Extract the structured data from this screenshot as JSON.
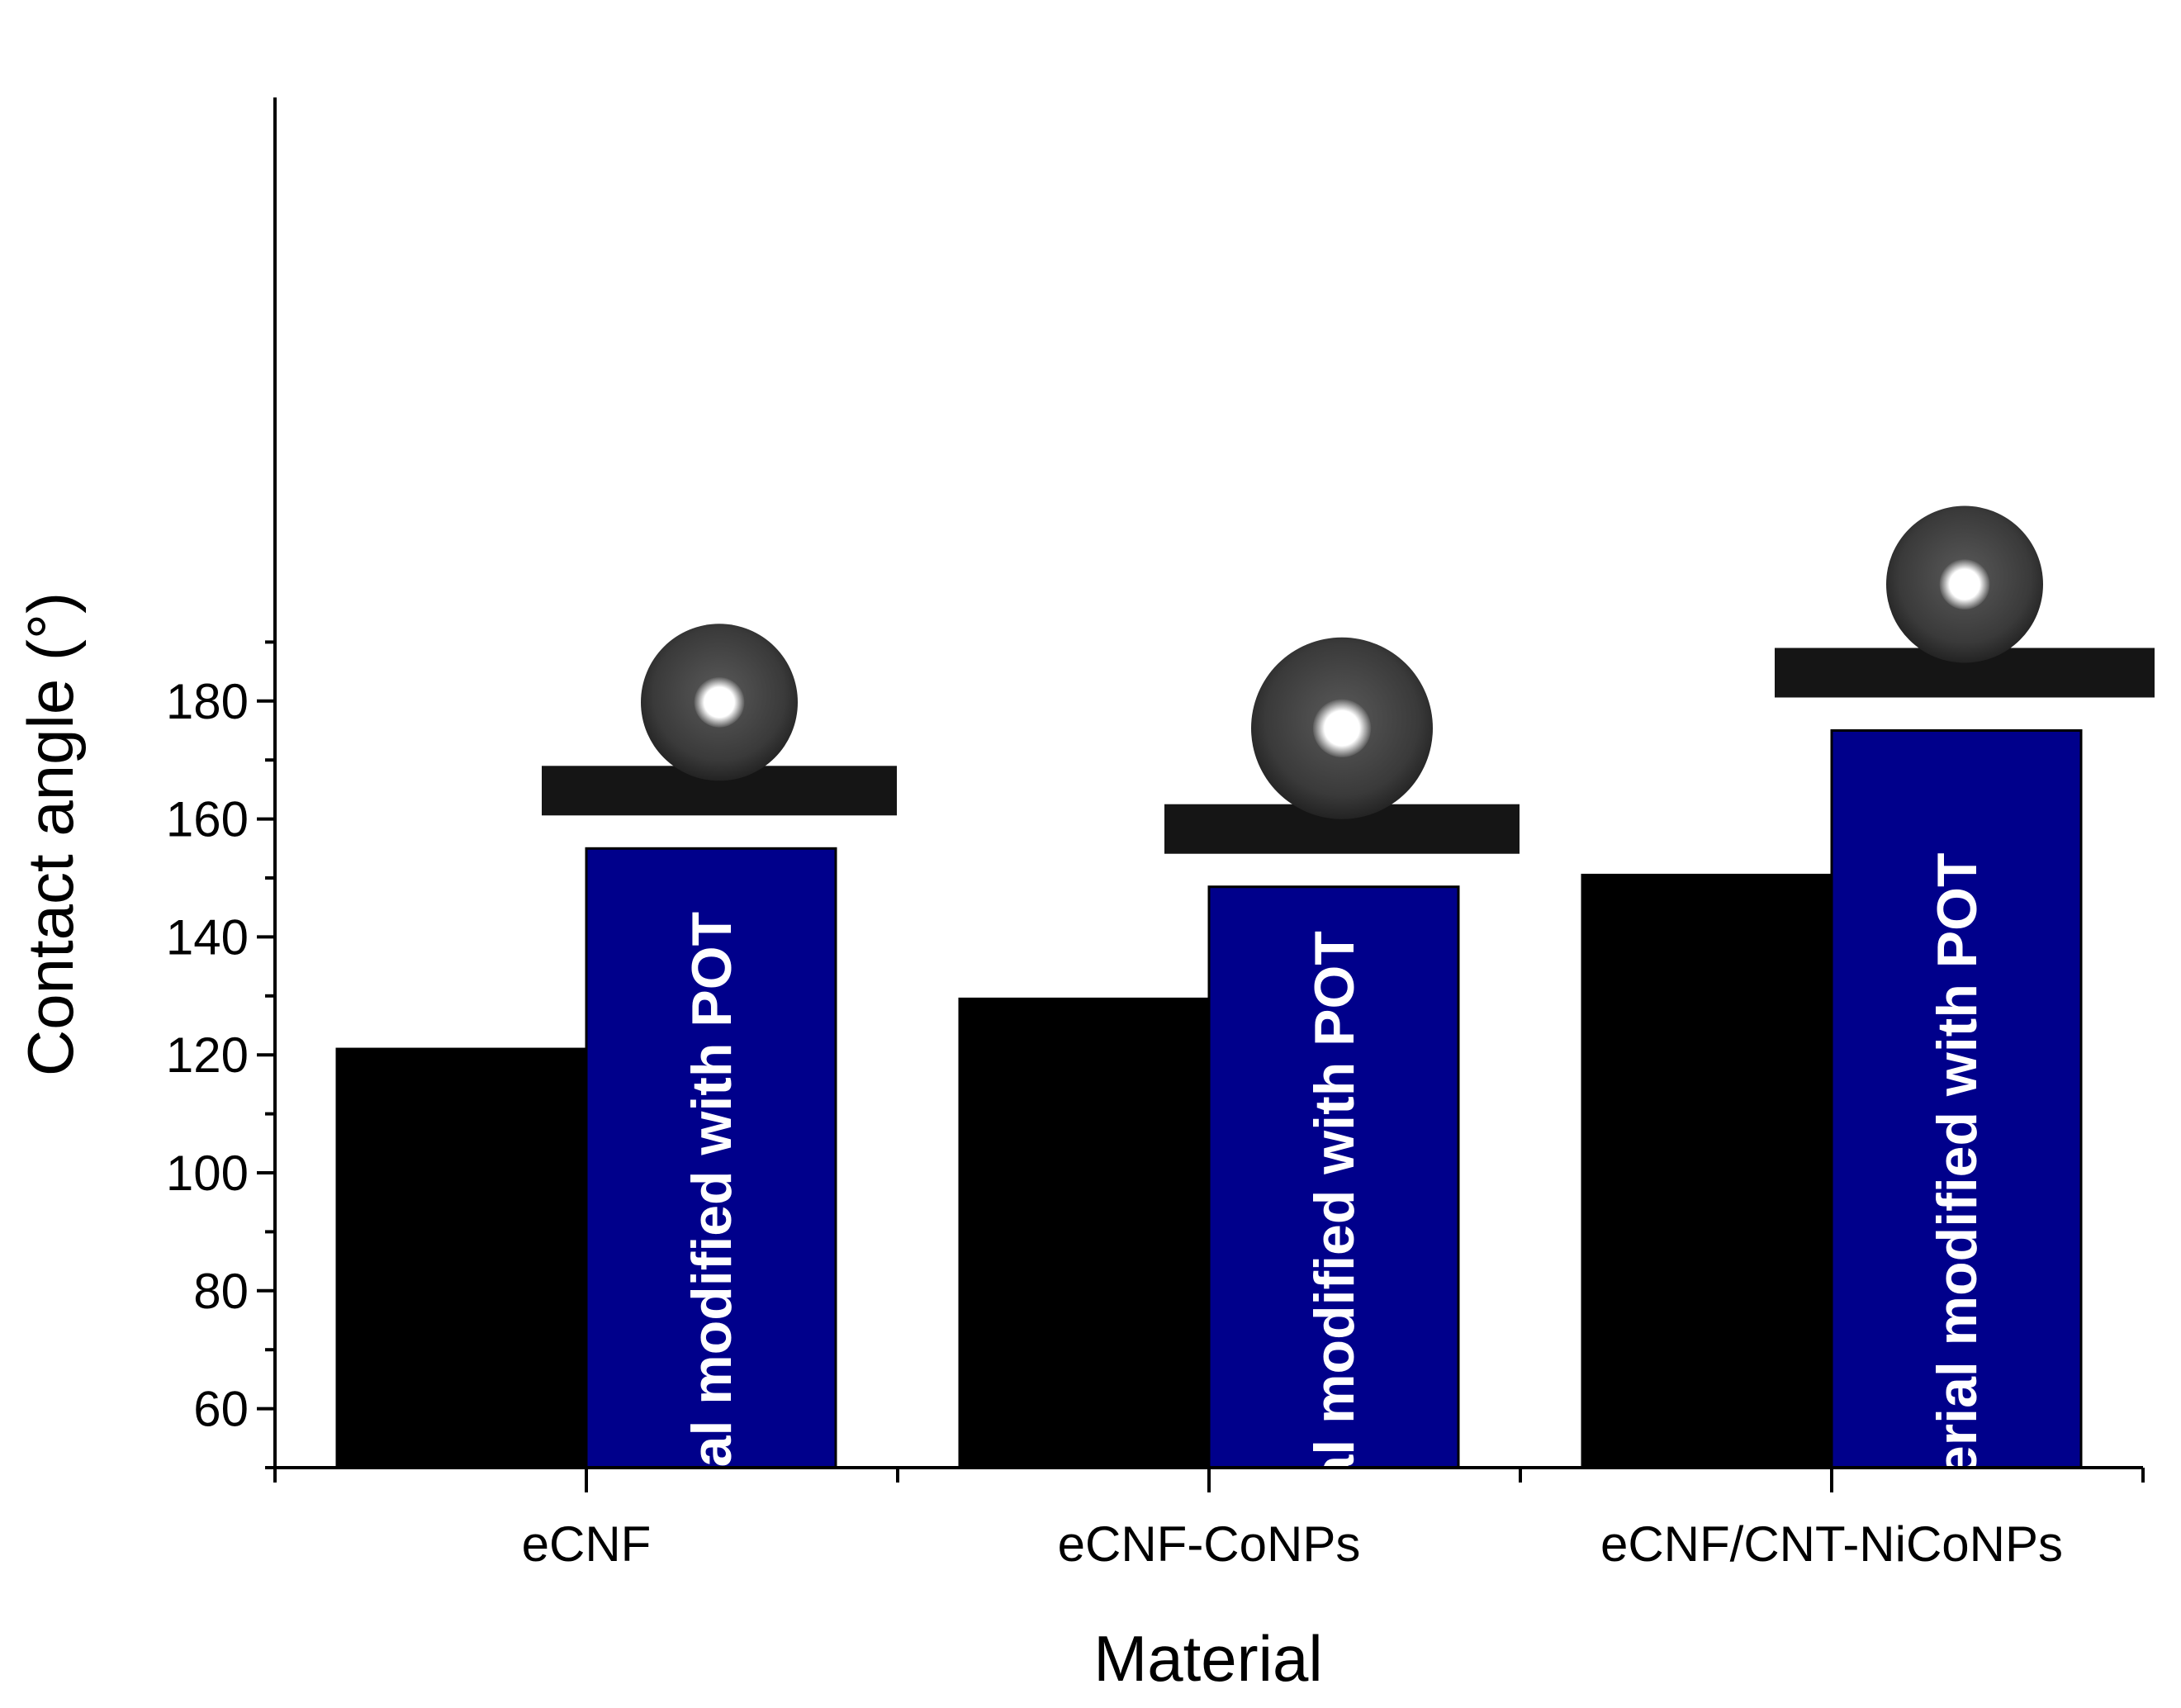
{
  "chart_data": {
    "type": "bar",
    "xlabel": "Material",
    "ylabel": "Contact angle (°)",
    "ylim": [
      50,
      190
    ],
    "yticks": [
      60,
      80,
      100,
      120,
      140,
      160,
      180
    ],
    "categories": [
      "eCNF",
      "eCNF-CoNPs",
      "eCNF/CNT-NiCoNPs"
    ],
    "series": [
      {
        "values": [
          121,
          129.5,
          150.5
        ],
        "color": "#000000"
      },
      {
        "values": [
          155,
          148.5,
          175
        ],
        "color": "#00008b",
        "bar_text": "material modified with POT"
      }
    ],
    "insets": "water droplet photographs above each modified bar"
  }
}
